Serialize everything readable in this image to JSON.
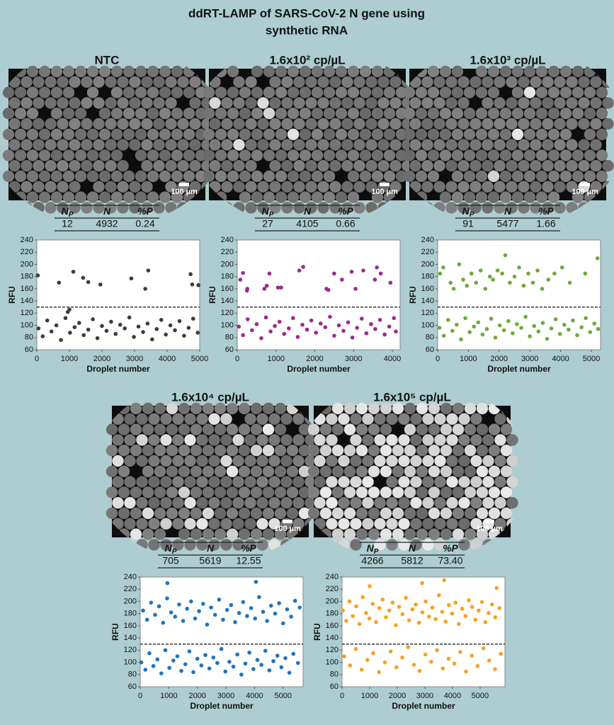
{
  "title": [
    "ddRT-LAMP of SARS-CoV-2 N gene using",
    "synthetic RNA"
  ],
  "panels": [
    {
      "title": "NTC",
      "scale_bar": "100 µm",
      "table": {
        "headers": [
          {
            "text": "N",
            "sub": "P"
          },
          {
            "text": "N"
          },
          {
            "text": "%P"
          }
        ],
        "row": [
          "12",
          "4932",
          "0.24"
        ]
      }
    },
    {
      "title": "1.6x10² cp/µL",
      "scale_bar": "100 µm",
      "table": {
        "headers": [
          {
            "text": "N",
            "sub": "P"
          },
          {
            "text": "N"
          },
          {
            "text": "%P"
          }
        ],
        "row": [
          "27",
          "4105",
          "0.66"
        ]
      }
    },
    {
      "title": "1.6x10³ cp/µL",
      "scale_bar": "100 µm",
      "table": {
        "headers": [
          {
            "text": "N",
            "sub": "P"
          },
          {
            "text": "N"
          },
          {
            "text": "%P"
          }
        ],
        "row": [
          "91",
          "5477",
          "1.66"
        ]
      }
    },
    {
      "title": "1.6x10⁴ cp/µL",
      "scale_bar": "100 µm",
      "table": {
        "headers": [
          {
            "text": "N",
            "sub": "P"
          },
          {
            "text": "N"
          },
          {
            "text": "%P"
          }
        ],
        "row": [
          "705",
          "5619",
          "12.55"
        ]
      }
    },
    {
      "title": "1.6x10⁵ cp/µL",
      "scale_bar": "100 µm",
      "table": {
        "headers": [
          {
            "text": "N",
            "sub": "P"
          },
          {
            "text": "N"
          },
          {
            "text": "%P"
          }
        ],
        "row": [
          "4266",
          "5812",
          "73.40"
        ]
      }
    }
  ],
  "chart_data": [
    {
      "type": "scatter",
      "xlabel": "Droplet number",
      "ylabel": "RFU",
      "color": "#3d3d3d",
      "threshold": 130,
      "xlim": [
        0,
        5000
      ],
      "xticks": [
        0,
        1000,
        2000,
        3000,
        4000,
        5000
      ],
      "ylim": [
        60,
        240
      ],
      "yticks": [
        60,
        80,
        100,
        120,
        140,
        160,
        180,
        200,
        220,
        240
      ],
      "x": [
        50,
        180,
        320,
        450,
        600,
        740,
        880,
        1020,
        1160,
        1300,
        1440,
        1580,
        1720,
        1860,
        2000,
        2140,
        2280,
        2420,
        2560,
        2700,
        2840,
        2980,
        3120,
        3260,
        3400,
        3540,
        3680,
        3820,
        3960,
        4100,
        4240,
        4380,
        4520,
        4660,
        4800,
        4940,
        30,
        680,
        1120,
        1420,
        1580,
        1950,
        2900,
        3330,
        3420,
        4720,
        4770,
        4960,
        950,
        1000
      ],
      "y": [
        95,
        82,
        108,
        90,
        100,
        76,
        112,
        88,
        97,
        104,
        84,
        93,
        110,
        79,
        99,
        91,
        106,
        86,
        101,
        95,
        113,
        81,
        98,
        89,
        103,
        77,
        94,
        109,
        85,
        100,
        92,
        107,
        83,
        96,
        111,
        88,
        182,
        170,
        188,
        178,
        171,
        167,
        177,
        160,
        190,
        184,
        167,
        166,
        122,
        126
      ]
    },
    {
      "type": "scatter",
      "xlabel": "Droplet number",
      "ylabel": "RFU",
      "color": "#9c2a90",
      "threshold": 130,
      "xlim": [
        0,
        4200
      ],
      "xticks": [
        0,
        1000,
        2000,
        3000,
        4000
      ],
      "ylim": [
        60,
        240
      ],
      "yticks": [
        60,
        80,
        100,
        120,
        140,
        160,
        180,
        200,
        220,
        240
      ],
      "x": [
        40,
        150,
        270,
        380,
        500,
        620,
        740,
        860,
        970,
        1090,
        1210,
        1330,
        1440,
        1560,
        1680,
        1800,
        1910,
        2030,
        2150,
        2270,
        2390,
        2500,
        2620,
        2740,
        2860,
        2970,
        3090,
        3210,
        3330,
        3450,
        3560,
        3680,
        3800,
        3920,
        4040,
        4090,
        80,
        150,
        250,
        260,
        700,
        760,
        830,
        1050,
        1130,
        1600,
        1700,
        2300,
        2350,
        2500,
        2700,
        2950,
        3050,
        3250,
        3550,
        3600,
        3700,
        3950
      ],
      "y": [
        98,
        84,
        110,
        92,
        102,
        79,
        113,
        90,
        99,
        106,
        86,
        95,
        112,
        81,
        101,
        93,
        108,
        88,
        103,
        97,
        114,
        83,
        100,
        91,
        105,
        80,
        96,
        111,
        87,
        102,
        94,
        109,
        85,
        98,
        112,
        90,
        175,
        186,
        157,
        160,
        160,
        165,
        185,
        162,
        162,
        190,
        196,
        160,
        158,
        185,
        175,
        188,
        160,
        190,
        175,
        195,
        185,
        170
      ]
    },
    {
      "type": "scatter",
      "xlabel": "Droplet number",
      "ylabel": "RFU",
      "color": "#6cab3c",
      "threshold": 130,
      "xlim": [
        0,
        5300
      ],
      "xticks": [
        0,
        1000,
        2000,
        3000,
        4000,
        5000
      ],
      "ylim": [
        60,
        240
      ],
      "yticks": [
        60,
        80,
        100,
        120,
        140,
        160,
        180,
        200,
        220,
        240
      ],
      "x": [
        60,
        200,
        340,
        480,
        620,
        760,
        900,
        1040,
        1180,
        1320,
        1460,
        1600,
        1740,
        1880,
        2020,
        2160,
        2300,
        2440,
        2580,
        2720,
        2860,
        3000,
        3140,
        3280,
        3420,
        3560,
        3700,
        3840,
        3980,
        4120,
        4260,
        4400,
        4540,
        4680,
        4820,
        4960,
        5100,
        5220,
        80,
        180,
        420,
        520,
        700,
        830,
        950,
        1100,
        1250,
        1400,
        1550,
        1700,
        1800,
        1950,
        2100,
        2200,
        2350,
        2500,
        2650,
        2800,
        2950,
        3100,
        3250,
        3400,
        3600,
        3800,
        4050,
        4300,
        4800,
        5200
      ],
      "y": [
        96,
        83,
        109,
        91,
        101,
        77,
        112,
        89,
        98,
        105,
        85,
        94,
        111,
        80,
        100,
        92,
        107,
        87,
        102,
        96,
        114,
        82,
        99,
        90,
        104,
        78,
        95,
        110,
        86,
        101,
        93,
        108,
        84,
        97,
        112,
        89,
        103,
        94,
        185,
        195,
        170,
        160,
        200,
        175,
        165,
        185,
        170,
        190,
        160,
        180,
        175,
        190,
        185,
        215,
        170,
        180,
        195,
        165,
        185,
        170,
        190,
        160,
        175,
        185,
        195,
        170,
        185,
        210
      ]
    },
    {
      "type": "scatter",
      "xlabel": "Droplet number",
      "ylabel": "RFU",
      "color": "#1f74bd",
      "threshold": 130,
      "xlim": [
        0,
        5700
      ],
      "xticks": [
        0,
        1000,
        2000,
        3000,
        4000,
        5000
      ],
      "ylim": [
        60,
        240
      ],
      "yticks": [
        60,
        80,
        100,
        120,
        140,
        160,
        180,
        200,
        220,
        240
      ],
      "x": [
        40,
        180,
        320,
        460,
        600,
        740,
        880,
        1020,
        1160,
        1300,
        1440,
        1580,
        1720,
        1860,
        2000,
        2140,
        2280,
        2420,
        2560,
        2700,
        2840,
        2980,
        3120,
        3260,
        3400,
        3540,
        3680,
        3820,
        3960,
        4100,
        4240,
        4380,
        4520,
        4660,
        4800,
        4940,
        5080,
        5220,
        5360,
        5520,
        100,
        240,
        380,
        520,
        660,
        800,
        940,
        1080,
        1220,
        1360,
        1500,
        1640,
        1780,
        1920,
        2060,
        2200,
        2340,
        2480,
        2620,
        2760,
        2900,
        3040,
        3180,
        3320,
        3460,
        3600,
        3740,
        3880,
        4020,
        4160,
        4300,
        4440,
        4580,
        4720,
        4860,
        5000,
        5140,
        5280,
        5420,
        5580,
        950,
        4050
      ],
      "y": [
        100,
        88,
        115,
        94,
        105,
        82,
        120,
        91,
        103,
        110,
        86,
        97,
        118,
        84,
        106,
        95,
        112,
        90,
        108,
        99,
        122,
        85,
        101,
        93,
        113,
        80,
        98,
        116,
        89,
        104,
        96,
        119,
        87,
        102,
        111,
        92,
        107,
        83,
        114,
        99,
        185,
        170,
        198,
        178,
        192,
        165,
        205,
        182,
        175,
        195,
        168,
        188,
        200,
        172,
        184,
        196,
        162,
        190,
        178,
        203,
        170,
        186,
        194,
        166,
        181,
        199,
        176,
        189,
        172,
        207,
        183,
        168,
        193,
        180,
        197,
        164,
        187,
        175,
        201,
        190,
        230,
        232
      ]
    },
    {
      "type": "scatter",
      "xlabel": "Droplet number",
      "ylabel": "RFU",
      "color": "#f6a21f",
      "threshold": 130,
      "xlim": [
        0,
        5900
      ],
      "xticks": [
        0,
        1000,
        2000,
        3000,
        4000,
        5000
      ],
      "ylim": [
        60,
        240
      ],
      "yticks": [
        60,
        80,
        100,
        120,
        140,
        160,
        180,
        200,
        220,
        240
      ],
      "x": [
        30,
        150,
        270,
        390,
        510,
        630,
        750,
        870,
        990,
        1110,
        1230,
        1350,
        1470,
        1590,
        1710,
        1830,
        1950,
        2070,
        2190,
        2310,
        2430,
        2550,
        2670,
        2790,
        2910,
        3030,
        3150,
        3270,
        3390,
        3510,
        3630,
        3750,
        3870,
        3990,
        4110,
        4230,
        4350,
        4470,
        4590,
        4710,
        4830,
        4950,
        5070,
        5190,
        5310,
        5430,
        5550,
        5700,
        80,
        290,
        500,
        710,
        920,
        1130,
        1340,
        1550,
        1760,
        1970,
        2180,
        2390,
        2600,
        2810,
        3020,
        3230,
        3440,
        3650,
        3860,
        4070,
        4280,
        4490,
        4700,
        4910,
        5120,
        5330,
        5540,
        5750,
        1000,
        2900,
        3700,
        5600
      ],
      "y": [
        185,
        168,
        200,
        176,
        192,
        163,
        207,
        181,
        172,
        196,
        166,
        189,
        203,
        174,
        185,
        198,
        161,
        191,
        179,
        206,
        169,
        187,
        195,
        165,
        182,
        200,
        175,
        190,
        171,
        210,
        183,
        167,
        194,
        180,
        198,
        163,
        188,
        176,
        202,
        191,
        170,
        185,
        199,
        166,
        181,
        195,
        174,
        189,
        110,
        95,
        122,
        88,
        104,
        115,
        84,
        100,
        118,
        92,
        108,
        125,
        96,
        86,
        113,
        101,
        120,
        90,
        106,
        98,
        117,
        85,
        111,
        94,
        123,
        103,
        89,
        114,
        225,
        230,
        235,
        222
      ]
    }
  ]
}
